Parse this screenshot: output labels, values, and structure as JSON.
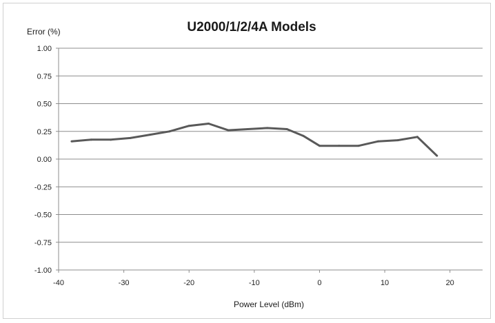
{
  "chart_data": {
    "type": "line",
    "title": "U2000/1/2/4A Models",
    "ylabel": "Error (%)",
    "xlabel": "Power Level (dBm)",
    "xlim": [
      -40,
      25
    ],
    "ylim": [
      -1.0,
      1.0
    ],
    "x_ticks": [
      -40,
      -30,
      -20,
      -10,
      0,
      10,
      20
    ],
    "y_ticks": [
      1.0,
      0.75,
      0.5,
      0.25,
      0.0,
      -0.25,
      -0.5,
      -0.75,
      -1.0
    ],
    "x_tick_labels": [
      "-40",
      "-30",
      "-20",
      "-10",
      "0",
      "10",
      "20"
    ],
    "y_tick_labels": [
      "1.00",
      "0.75",
      "0.50",
      "0.25",
      "0.00",
      "-0.25",
      "-0.50",
      "-0.75",
      "-1.00"
    ],
    "grid": "horizontal",
    "series": [
      {
        "color": "#595959",
        "x": [
          -38,
          -35,
          -32,
          -29,
          -26,
          -23,
          -20,
          -17,
          -14,
          -11,
          -8,
          -5,
          -2.5,
          0,
          3,
          6,
          9,
          12,
          15,
          18
        ],
        "y": [
          0.16,
          0.175,
          0.175,
          0.19,
          0.22,
          0.25,
          0.3,
          0.32,
          0.26,
          0.27,
          0.28,
          0.27,
          0.21,
          0.12,
          0.12,
          0.12,
          0.16,
          0.17,
          0.2,
          0.03
        ]
      }
    ]
  }
}
